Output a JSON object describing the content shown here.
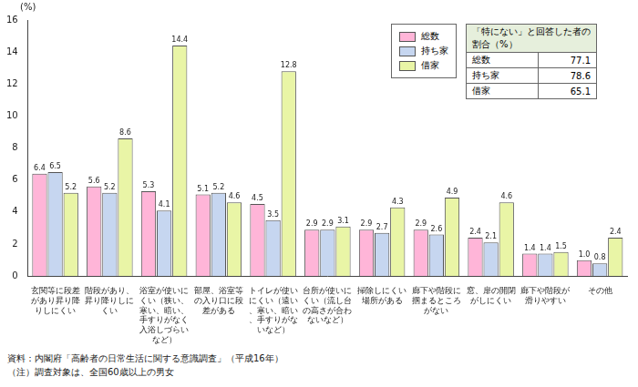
{
  "chart_data": {
    "type": "bar",
    "y_label": "(%)",
    "categories": [
      "玄関等に段差があり昇り降りしにくい",
      "階段があり、昇り降りしにくい",
      "浴室が使いにくい（狭い、寒い、暗い、手すりがなく入浴しづらいなど）",
      "部屋、浴室等の入り口に段差がある",
      "トイレが使いにくい（遠い、寒い、暗い、手すりがないなど）",
      "台所が使いにくい（流し台の高さが合わないなど）",
      "掃除しにくい場所がある",
      "廊下や階段に掴まるところがない",
      "窓、扉の開閉がしにくい",
      "廊下や階段が滑りやすい",
      "その他"
    ],
    "series": [
      {
        "name": "総数",
        "color": "#ffb5d8",
        "values": [
          6.4,
          5.6,
          5.3,
          5.1,
          4.5,
          2.9,
          2.9,
          2.9,
          2.4,
          1.4,
          1.0
        ],
        "value_labels": [
          "6.4",
          "5.6",
          "5.3",
          "5.1",
          "4.5",
          "2.9",
          "2.9",
          "2.9",
          "2.4",
          "1.4",
          "1.0"
        ]
      },
      {
        "name": "持ち家",
        "color": "#c6d6f0",
        "values": [
          6.5,
          5.2,
          4.1,
          5.2,
          3.5,
          2.9,
          2.7,
          2.6,
          2.1,
          1.4,
          0.8
        ],
        "value_labels": [
          "6.5",
          "5.2",
          "4.1",
          "5.2",
          "3.5",
          "2.9",
          "2.7",
          "2.6",
          "2.1",
          "1.4",
          "0.8"
        ]
      },
      {
        "name": "借家",
        "color": "#e9f5a6",
        "values": [
          5.2,
          8.6,
          14.4,
          4.6,
          12.8,
          3.1,
          4.3,
          4.9,
          4.6,
          1.5,
          2.4
        ],
        "value_labels": [
          "5.2",
          "8.6",
          "14.4",
          "4.6",
          "12.8",
          "3.1",
          "4.3",
          "4.9",
          "4.6",
          "1.5",
          "2.4"
        ]
      }
    ],
    "ylim": [
      0,
      16
    ],
    "yticks": [
      0,
      2,
      4,
      6,
      8,
      10,
      12,
      14,
      16
    ],
    "grid": false,
    "legend": "top-right",
    "data_labels": true,
    "inset_table": {
      "title": "「特にない」と回答した者の割合（%）",
      "rows": [
        [
          "総数",
          77.1
        ],
        [
          "持ち家",
          78.6
        ],
        [
          "借家",
          65.1
        ]
      ]
    },
    "annotations": [
      "資料：内閣府「高齢者の日常生活に関する意識調査」（平成16年）",
      "（注）調査対象は、全国60歳以上の男女"
    ]
  }
}
